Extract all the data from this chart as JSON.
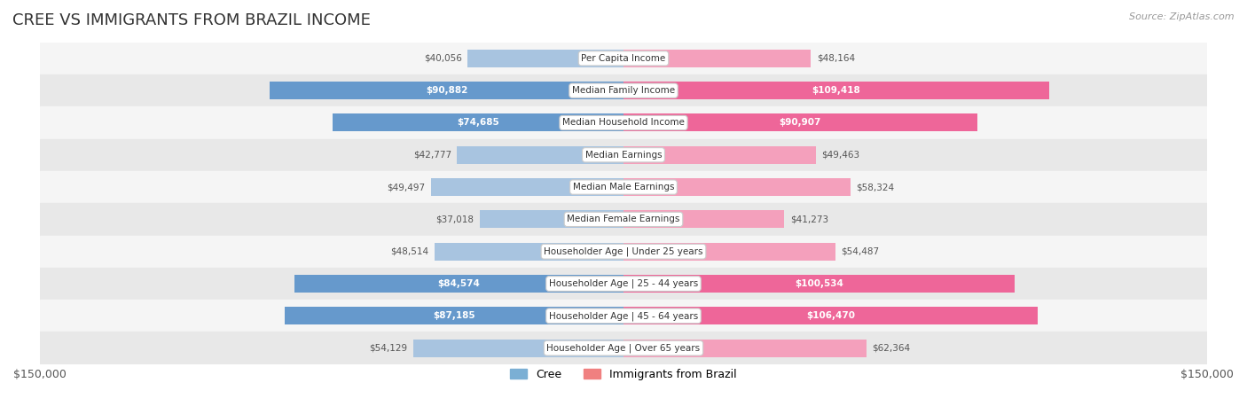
{
  "title": "CREE VS IMMIGRANTS FROM BRAZIL INCOME",
  "source": "Source: ZipAtlas.com",
  "max_value": 150000,
  "categories": [
    "Per Capita Income",
    "Median Family Income",
    "Median Household Income",
    "Median Earnings",
    "Median Male Earnings",
    "Median Female Earnings",
    "Householder Age | Under 25 years",
    "Householder Age | 25 - 44 years",
    "Householder Age | 45 - 64 years",
    "Householder Age | Over 65 years"
  ],
  "cree_values": [
    40056,
    90882,
    74685,
    42777,
    49497,
    37018,
    48514,
    84574,
    87185,
    54129
  ],
  "brazil_values": [
    48164,
    109418,
    90907,
    49463,
    58324,
    41273,
    54487,
    100534,
    106470,
    62364
  ],
  "cree_labels": [
    "$40,056",
    "$90,882",
    "$74,685",
    "$42,777",
    "$49,497",
    "$37,018",
    "$48,514",
    "$84,574",
    "$87,185",
    "$54,129"
  ],
  "brazil_labels": [
    "$48,164",
    "$109,418",
    "$90,907",
    "$49,463",
    "$58,324",
    "$41,273",
    "$54,487",
    "$100,534",
    "$106,470",
    "$62,364"
  ],
  "cree_color_light": "#a8c4e0",
  "cree_color_dark": "#6699cc",
  "brazil_color_light": "#f4a0bc",
  "brazil_color_dark": "#ee6699",
  "bar_height": 0.55,
  "background_color": "#ffffff",
  "row_bg_light": "#f5f5f5",
  "row_bg_dark": "#e8e8e8",
  "legend_cree_color": "#7bafd4",
  "legend_brazil_color": "#f08080",
  "title_fontsize": 13,
  "label_fontsize": 7.5,
  "category_fontsize": 7.5
}
